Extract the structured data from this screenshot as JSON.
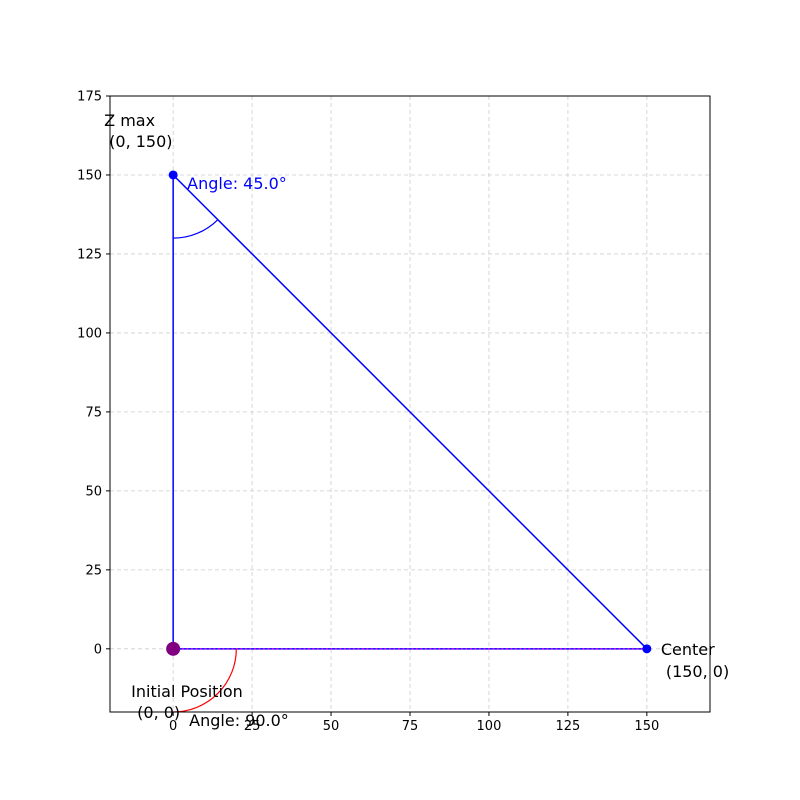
{
  "chart_data": {
    "type": "line",
    "title": "",
    "xlabel": "",
    "ylabel": "",
    "xlim": [
      -20,
      170
    ],
    "ylim": [
      -20,
      175
    ],
    "grid": true,
    "x_ticks": [
      0,
      25,
      50,
      75,
      100,
      125,
      150
    ],
    "y_ticks": [
      0,
      25,
      50,
      75,
      100,
      125,
      150,
      175
    ],
    "series": [
      {
        "segments": [
          {
            "from": [
              0,
              0
            ],
            "to": [
              0,
              150
            ],
            "style": "solid"
          },
          {
            "from": [
              0,
              150
            ],
            "to": [
              150,
              0
            ],
            "style": "solid"
          },
          {
            "from": [
              0,
              0
            ],
            "to": [
              150,
              0
            ],
            "style": "dotted"
          }
        ],
        "color": "#0000ff"
      }
    ],
    "points": [
      {
        "x": 0,
        "y": 150,
        "label_line1": "Z max",
        "label_line2": "(0, 150)",
        "color": "#0000ff"
      },
      {
        "x": 150,
        "y": 0,
        "label_line1": "Center",
        "label_line2": "(150, 0)",
        "color": "#0000ff"
      },
      {
        "x": 0,
        "y": 0,
        "label_line1": "Initial Position",
        "label_line2": "(0, 0)",
        "color": "#800080"
      }
    ],
    "angles": [
      {
        "vertex": [
          0,
          150
        ],
        "value_deg": 45.0,
        "label": "Angle: 45.0°",
        "color": "#0000ff"
      },
      {
        "vertex": [
          0,
          0
        ],
        "value_deg": 90.0,
        "label": "Angle: 90.0°",
        "color": "#ff0000"
      }
    ],
    "colors": {
      "line": "#0000ff",
      "origin_marker": "#800080",
      "bottom_dotted": "#ff00ff",
      "angle_90": "#ff0000",
      "grid": "#cccccc"
    }
  }
}
